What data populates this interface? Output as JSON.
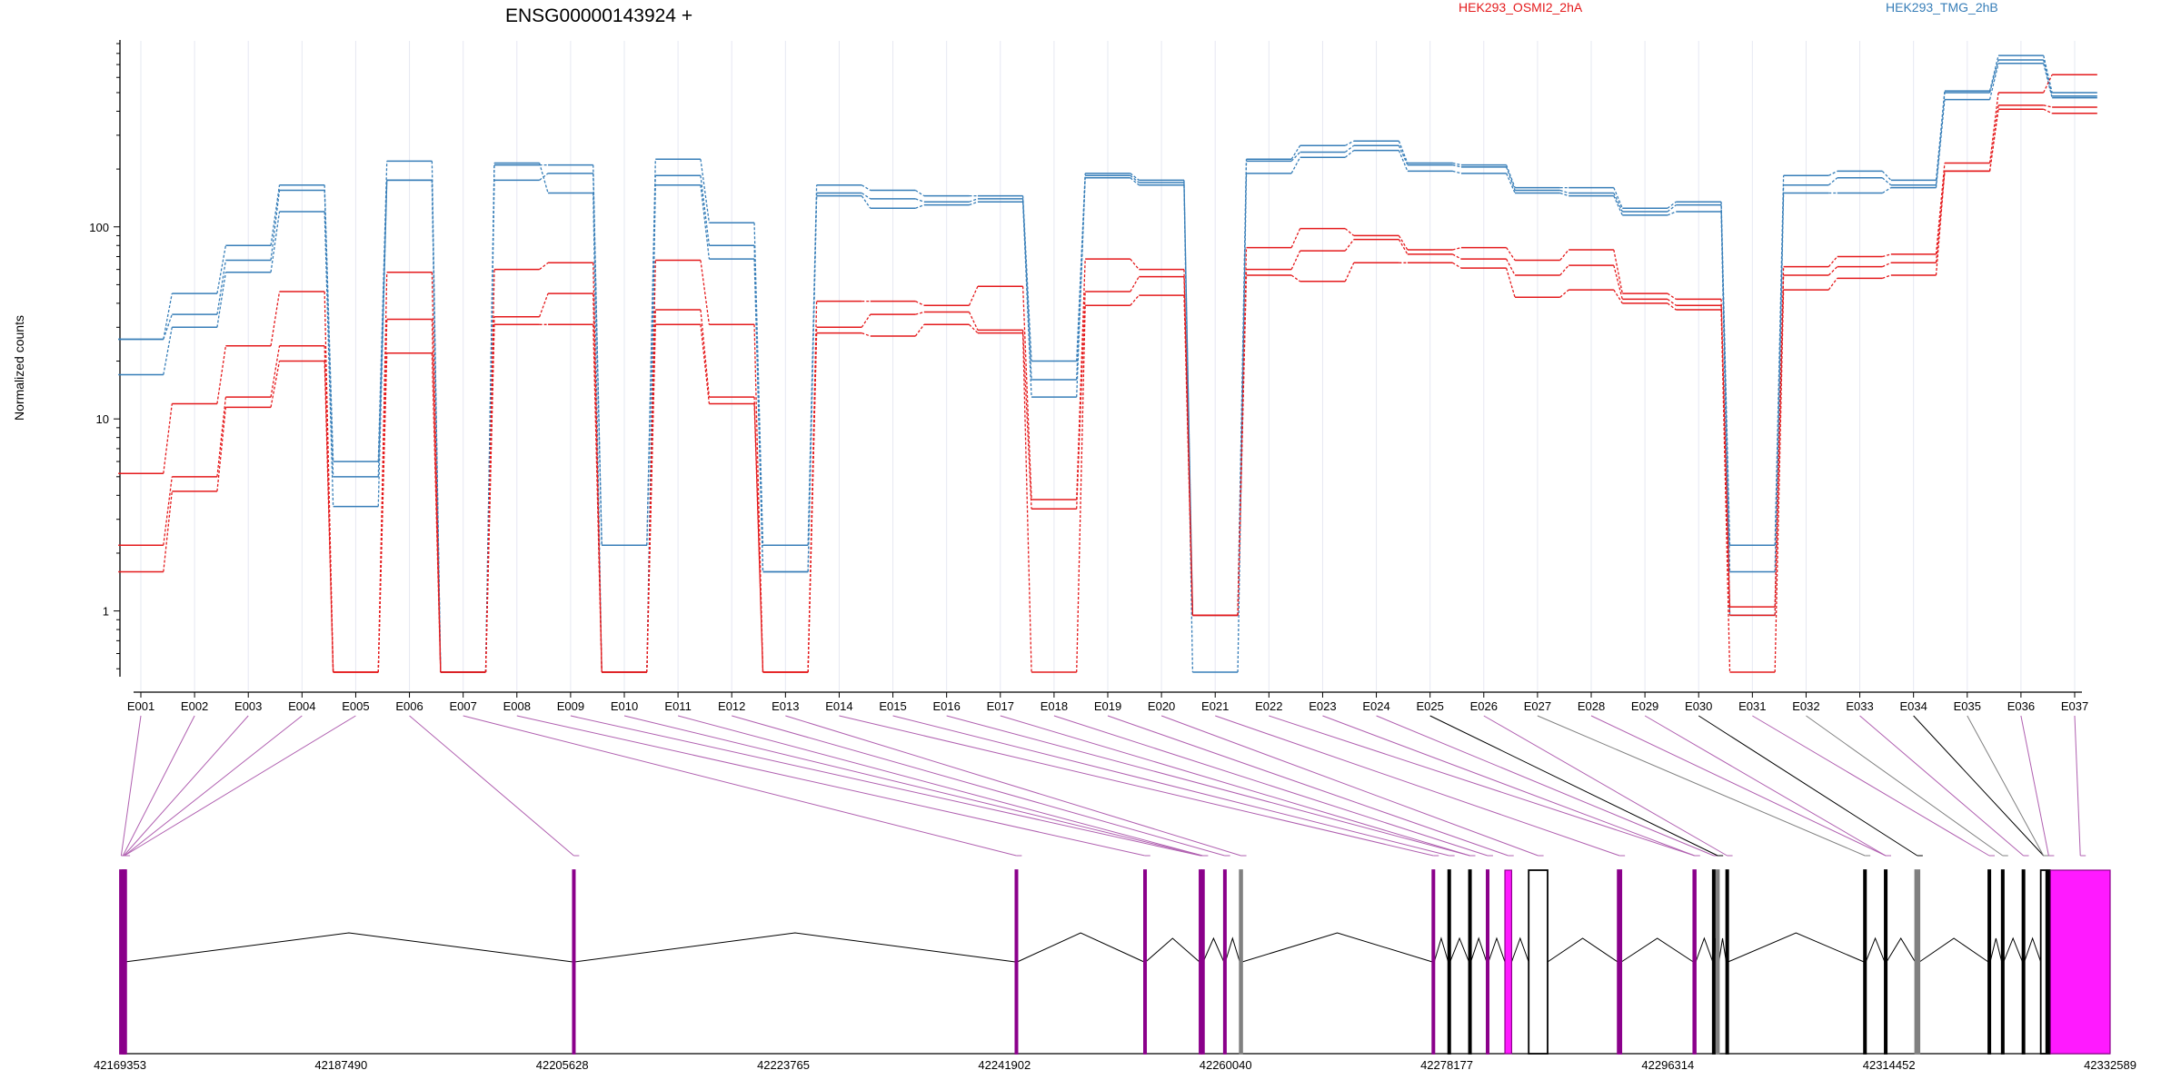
{
  "chart_data": {
    "type": "line",
    "title": "ENSG00000143924 +",
    "ylabel": "Normalized counts",
    "yscale": "log",
    "ylim": [
      0.48,
      900
    ],
    "y_ticks": [
      "1",
      "10",
      "100"
    ],
    "exons": [
      "E001",
      "E002",
      "E003",
      "E004",
      "E005",
      "E006",
      "E007",
      "E008",
      "E009",
      "E010",
      "E011",
      "E012",
      "E013",
      "E014",
      "E015",
      "E016",
      "E017",
      "E018",
      "E019",
      "E020",
      "E021",
      "E022",
      "E023",
      "E024",
      "E025",
      "E026",
      "E027",
      "E028",
      "E029",
      "E030",
      "E031",
      "E032",
      "E033",
      "E034",
      "E035",
      "E036",
      "E037"
    ],
    "legend": [
      {
        "label": "HEK293_OSMI2_2hA",
        "color": "#e41a1c"
      },
      {
        "label": "HEK293_TMG_2hB",
        "color": "#377eb8"
      }
    ],
    "series": [
      {
        "group": "HEK293_TMG_2hB",
        "color": "#377eb8",
        "values": [
          26,
          45,
          80,
          165,
          6,
          220,
          0.48,
          210,
          210,
          2.2,
          225,
          105,
          2.2,
          165,
          155,
          145,
          145,
          20,
          190,
          175,
          0.95,
          225,
          265,
          280,
          215,
          210,
          160,
          160,
          125,
          135,
          2.2,
          185,
          195,
          175,
          510,
          780,
          500
        ]
      },
      {
        "group": "HEK293_TMG_2hB",
        "color": "#377eb8",
        "values": [
          26,
          35,
          67,
          155,
          5,
          175,
          0.48,
          175,
          190,
          2.2,
          185,
          80,
          1.6,
          150,
          140,
          135,
          140,
          16,
          185,
          170,
          0.95,
          220,
          245,
          265,
          210,
          205,
          155,
          150,
          120,
          130,
          1.6,
          165,
          180,
          165,
          500,
          740,
          480
        ]
      },
      {
        "group": "HEK293_TMG_2hB",
        "color": "#377eb8",
        "values": [
          17,
          30,
          58,
          120,
          3.5,
          175,
          0.48,
          215,
          150,
          0.48,
          165,
          68,
          1.6,
          145,
          125,
          130,
          135,
          13,
          180,
          165,
          0.48,
          190,
          230,
          250,
          195,
          190,
          150,
          145,
          115,
          120,
          0.95,
          150,
          150,
          160,
          460,
          710,
          470
        ]
      },
      {
        "group": "HEK293_OSMI2_2hA",
        "color": "#e41a1c",
        "values": [
          5.2,
          12,
          24,
          46,
          0.48,
          58,
          0.48,
          60,
          65,
          0.48,
          67,
          31,
          0.48,
          41,
          41,
          39,
          49,
          3.8,
          68,
          60,
          0.95,
          78,
          98,
          90,
          76,
          78,
          67,
          76,
          45,
          42,
          1.05,
          62,
          70,
          72,
          215,
          500,
          620
        ]
      },
      {
        "group": "HEK293_OSMI2_2hA",
        "color": "#e41a1c",
        "values": [
          2.2,
          5,
          13,
          24,
          0.48,
          33,
          0.48,
          34,
          45,
          0.48,
          37,
          13,
          0.48,
          30,
          35,
          36,
          29,
          3.4,
          46,
          55,
          0.95,
          60,
          75,
          86,
          72,
          68,
          56,
          63,
          42,
          39,
          0.95,
          56,
          62,
          65,
          195,
          430,
          420
        ]
      },
      {
        "group": "HEK293_OSMI2_2hA",
        "color": "#e41a1c",
        "values": [
          1.6,
          4.2,
          11.5,
          20,
          0.48,
          22,
          0.48,
          31,
          31,
          0.48,
          31,
          12,
          0.48,
          28,
          27,
          31,
          28,
          0.48,
          39,
          44,
          0.95,
          56,
          52,
          65,
          65,
          61,
          43,
          47,
          40,
          37,
          0.48,
          47,
          54,
          56,
          195,
          410,
          390
        ]
      }
    ],
    "gene_coords": [
      "42169353",
      "42187490",
      "42205628",
      "42223765",
      "42241902",
      "42260040",
      "42278177",
      "42296314",
      "42314452",
      "42332589"
    ],
    "gene_range": [
      42169353,
      42332589
    ],
    "exon_genomic": [
      {
        "s": 42169353,
        "e": 42169560,
        "c": "#8b008b"
      },
      {
        "s": 42169560,
        "e": 42169640,
        "c": "#8b008b"
      },
      {
        "s": 42169640,
        "e": 42169700,
        "c": "#8b008b"
      },
      {
        "s": 42169700,
        "e": 42169760,
        "c": "#8b008b"
      },
      {
        "s": 42206500,
        "e": 42206650,
        "c": "#8b008b"
      },
      {
        "s": 42242800,
        "e": 42242950,
        "c": "#8b008b"
      },
      {
        "s": 42253350,
        "e": 42253480,
        "c": "#8b008b"
      },
      {
        "s": 42257900,
        "e": 42258050,
        "c": "#8b008b"
      },
      {
        "s": 42258100,
        "e": 42258200,
        "c": "#8b008b"
      },
      {
        "s": 42259900,
        "e": 42260020,
        "c": "#8b008b"
      },
      {
        "s": 42261200,
        "e": 42261400,
        "c": "#808080"
      },
      {
        "s": 42277000,
        "e": 42277150,
        "c": "#8b008b"
      },
      {
        "s": 42278300,
        "e": 42278450,
        "c": "#000000"
      },
      {
        "s": 42280000,
        "e": 42280150,
        "c": "#000000"
      },
      {
        "s": 42281450,
        "e": 42281600,
        "c": "#8b008b"
      },
      {
        "s": 42282950,
        "e": 42283500,
        "c": "#8b008b",
        "fill": true
      },
      {
        "s": 42284900,
        "e": 42286450,
        "c": "#000000"
      },
      {
        "s": 42292200,
        "e": 42292500,
        "c": "#8b008b"
      },
      {
        "s": 42298400,
        "e": 42298600,
        "c": "#8b008b"
      },
      {
        "s": 42300000,
        "e": 42300150,
        "c": "#000000"
      },
      {
        "s": 42300300,
        "e": 42300500,
        "c": "#808080"
      },
      {
        "s": 42301100,
        "e": 42301250,
        "c": "#000000"
      },
      {
        "s": 42312400,
        "e": 42312550,
        "c": "#000000"
      },
      {
        "s": 42314100,
        "e": 42314250,
        "c": "#000000"
      },
      {
        "s": 42316600,
        "e": 42316950,
        "c": "#808080"
      },
      {
        "s": 42322600,
        "e": 42322750,
        "c": "#000000"
      },
      {
        "s": 42323700,
        "e": 42323850,
        "c": "#000000"
      },
      {
        "s": 42325400,
        "e": 42325550,
        "c": "#000000"
      },
      {
        "s": 42326900,
        "e": 42327350,
        "c": "#000000"
      },
      {
        "s": 42327450,
        "e": 42327650,
        "c": "#000000"
      },
      {
        "s": 42327700,
        "e": 42332589,
        "c": "#8b008b",
        "fill": true
      }
    ],
    "exon_link_colors": [
      "#8b008b",
      "#8b008b",
      "#8b008b",
      "#8b008b",
      "#8b008b",
      "#8b008b",
      "#8b008b",
      "#8b008b",
      "#8b008b",
      "#8b008b",
      "#8b008b",
      "#8b008b",
      "#8b008b",
      "#8b008b",
      "#8b008b",
      "#8b008b",
      "#8b008b",
      "#8b008b",
      "#8b008b",
      "#8b008b",
      "#8b008b",
      "#8b008b",
      "#8b008b",
      "#8b008b",
      "#000000",
      "#8b008b",
      "#808080",
      "#8b008b",
      "#8b008b",
      "#000000",
      "#8b008b",
      "#808080",
      "#8b008b",
      "#000000",
      "#808080",
      "#8b008b",
      "#8b008b"
    ]
  }
}
